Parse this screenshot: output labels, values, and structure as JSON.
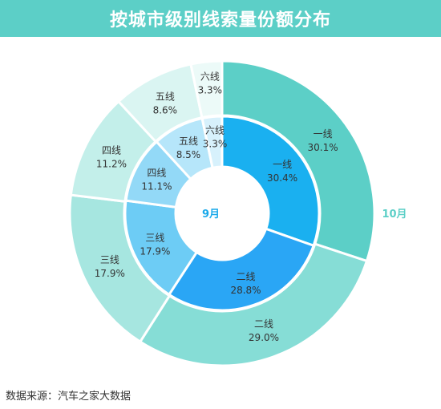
{
  "title": "按城市级别线索量份额分布",
  "source": "数据来源：汽车之家大数据",
  "chart_data": {
    "type": "pie",
    "subtype": "nested-donut",
    "series": [
      {
        "name": "9月",
        "ring": "inner",
        "categories": [
          "一线",
          "二线",
          "三线",
          "四线",
          "五线",
          "六线"
        ],
        "values": [
          30.4,
          28.8,
          17.9,
          11.1,
          8.5,
          3.3
        ],
        "labels": [
          "30.4%",
          "28.8%",
          "17.9%",
          "11.1%",
          "8.5%",
          "3.3%"
        ],
        "colors": [
          "#1ab0f0",
          "#2aa6f5",
          "#6dccf5",
          "#93d9f7",
          "#b6e6fa",
          "#d7f1fc"
        ]
      },
      {
        "name": "10月",
        "ring": "outer",
        "categories": [
          "一线",
          "二线",
          "三线",
          "四线",
          "五线",
          "六线"
        ],
        "values": [
          30.1,
          29.0,
          17.9,
          11.2,
          8.6,
          3.3
        ],
        "labels": [
          "30.1%",
          "29.0%",
          "17.9%",
          "11.2%",
          "8.6%",
          "3.3%"
        ],
        "colors": [
          "#5ccfc7",
          "#86ddd6",
          "#a6e6e0",
          "#c3efea",
          "#daf5f2",
          "#ecfaf8"
        ]
      }
    ],
    "label_color_inner": "#1aa9ea",
    "label_color_outer": "#5ccfc7",
    "start_angle_deg": 0,
    "direction": "clockwise"
  }
}
